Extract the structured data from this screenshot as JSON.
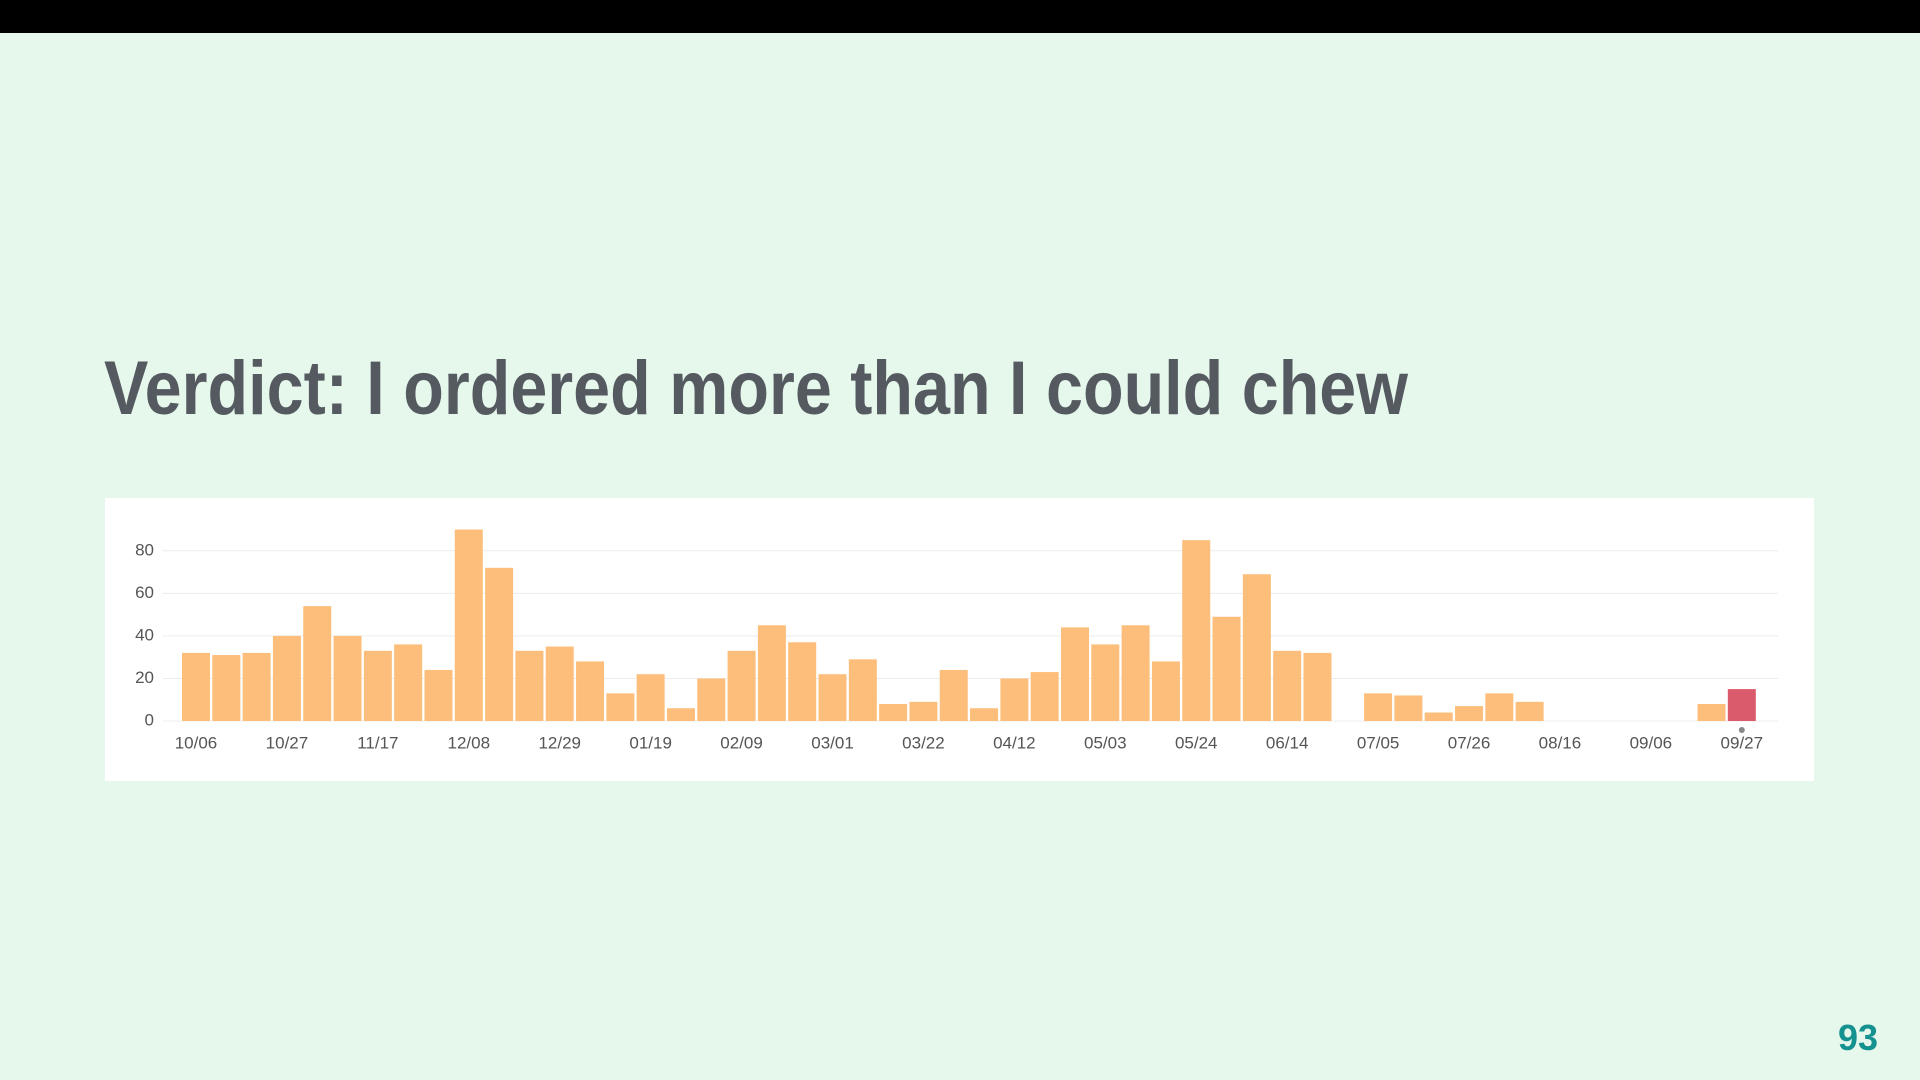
{
  "slide": {
    "title": "Verdict: I ordered more than I could chew",
    "page_number": "93"
  },
  "chart_data": {
    "type": "bar",
    "categories": [
      "10/06",
      null,
      null,
      "10/27",
      null,
      null,
      "11/17",
      null,
      null,
      "12/08",
      null,
      null,
      "12/29",
      null,
      null,
      "01/19",
      null,
      null,
      "02/09",
      null,
      null,
      "03/01",
      null,
      null,
      "03/22",
      null,
      null,
      "04/12",
      null,
      null,
      "05/03",
      null,
      null,
      "05/24",
      null,
      null,
      "06/14",
      null,
      null,
      "07/05",
      null,
      null,
      "07/26",
      null,
      null,
      "08/16",
      null,
      null,
      "09/06",
      null,
      null,
      "09/27"
    ],
    "values": [
      32,
      31,
      32,
      40,
      54,
      40,
      33,
      36,
      24,
      90,
      72,
      33,
      35,
      28,
      13,
      22,
      6,
      20,
      33,
      45,
      37,
      22,
      29,
      8,
      9,
      24,
      6,
      20,
      23,
      44,
      36,
      45,
      28,
      85,
      49,
      69,
      33,
      32,
      0,
      13,
      12,
      4,
      7,
      13,
      9,
      0,
      0,
      0,
      0,
      0,
      8,
      15
    ],
    "colors": [
      "#fdbe7b",
      "#fdbe7b",
      "#fdbe7b",
      "#fdbe7b",
      "#fdbe7b",
      "#fdbe7b",
      "#fdbe7b",
      "#fdbe7b",
      "#fdbe7b",
      "#fdbe7b",
      "#fdbe7b",
      "#fdbe7b",
      "#fdbe7b",
      "#fdbe7b",
      "#fdbe7b",
      "#fdbe7b",
      "#fdbe7b",
      "#fdbe7b",
      "#fdbe7b",
      "#fdbe7b",
      "#fdbe7b",
      "#fdbe7b",
      "#fdbe7b",
      "#fdbe7b",
      "#fdbe7b",
      "#fdbe7b",
      "#fdbe7b",
      "#fdbe7b",
      "#fdbe7b",
      "#fdbe7b",
      "#fdbe7b",
      "#fdbe7b",
      "#fdbe7b",
      "#fdbe7b",
      "#fdbe7b",
      "#fdbe7b",
      "#fdbe7b",
      "#fdbe7b",
      "#fdbe7b",
      "#fdbe7b",
      "#fdbe7b",
      "#fdbe7b",
      "#fdbe7b",
      "#fdbe7b",
      "#fdbe7b",
      "#fdbe7b",
      "#fdbe7b",
      "#fdbe7b",
      "#fdbe7b",
      "#fdbe7b",
      "#fdbe7b",
      "#d95b6c"
    ],
    "ylim": [
      0,
      90
    ],
    "yticks": [
      0,
      20,
      40,
      60,
      80
    ],
    "grid": true
  }
}
